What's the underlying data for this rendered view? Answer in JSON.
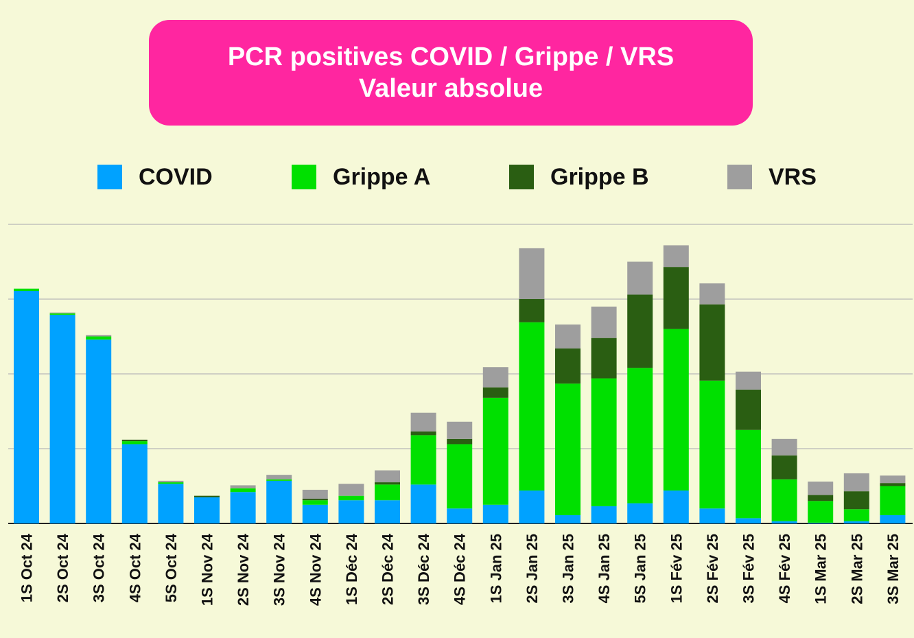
{
  "title": {
    "line1": "PCR positives COVID / Grippe / VRS",
    "line2": "Valeur absolue"
  },
  "chart_data": {
    "type": "bar",
    "stacked": true,
    "title": "PCR positives COVID / Grippe / VRS — Valeur absolue",
    "legend_position": "top",
    "grid": true,
    "ylim": [
      0,
      400
    ],
    "y_gridlines": [
      0,
      100,
      200,
      300,
      400
    ],
    "categories": [
      "1S Oct 24",
      "2S Oct 24",
      "3S Oct 24",
      "4S Oct 24",
      "5S Oct 24",
      "1S Nov 24",
      "2S Nov 24",
      "3S Nov 24",
      "4S Nov 24",
      "1S Déc 24",
      "2S Déc 24",
      "3S Déc 24",
      "4S Déc 24",
      "1S Jan 25",
      "2S Jan 25",
      "3S Jan 25",
      "4S Jan 25",
      "5S Jan 25",
      "1S Fév 25",
      "2S Fév 25",
      "3S Fév 25",
      "4S Fév 25",
      "1S Mar 25",
      "2S Mar 25",
      "3S Mar 25"
    ],
    "series": [
      {
        "name": "COVID",
        "color": "#00a2ff",
        "values": [
          311,
          279,
          246,
          106,
          53,
          35,
          42,
          57,
          25,
          31,
          31,
          52,
          20,
          25,
          44,
          11,
          23,
          27,
          44,
          20,
          7,
          3,
          1,
          3,
          11
        ]
      },
      {
        "name": "Grippe A",
        "color": "#00e000",
        "values": [
          3,
          2,
          4,
          4,
          2,
          0,
          5,
          2,
          6,
          6,
          21,
          66,
          86,
          143,
          225,
          176,
          171,
          181,
          216,
          171,
          118,
          56,
          29,
          16,
          39
        ]
      },
      {
        "name": "Grippe B",
        "color": "#2a5e12",
        "values": [
          0,
          0,
          0,
          2,
          0,
          2,
          0,
          0,
          2,
          0,
          3,
          5,
          7,
          14,
          31,
          47,
          54,
          98,
          83,
          102,
          54,
          32,
          8,
          24,
          4
        ]
      },
      {
        "name": "VRS",
        "color": "#9e9e9e",
        "values": [
          0,
          1,
          2,
          0,
          2,
          0,
          4,
          6,
          12,
          16,
          16,
          25,
          23,
          27,
          68,
          32,
          42,
          44,
          29,
          28,
          24,
          22,
          18,
          24,
          10
        ]
      }
    ]
  }
}
